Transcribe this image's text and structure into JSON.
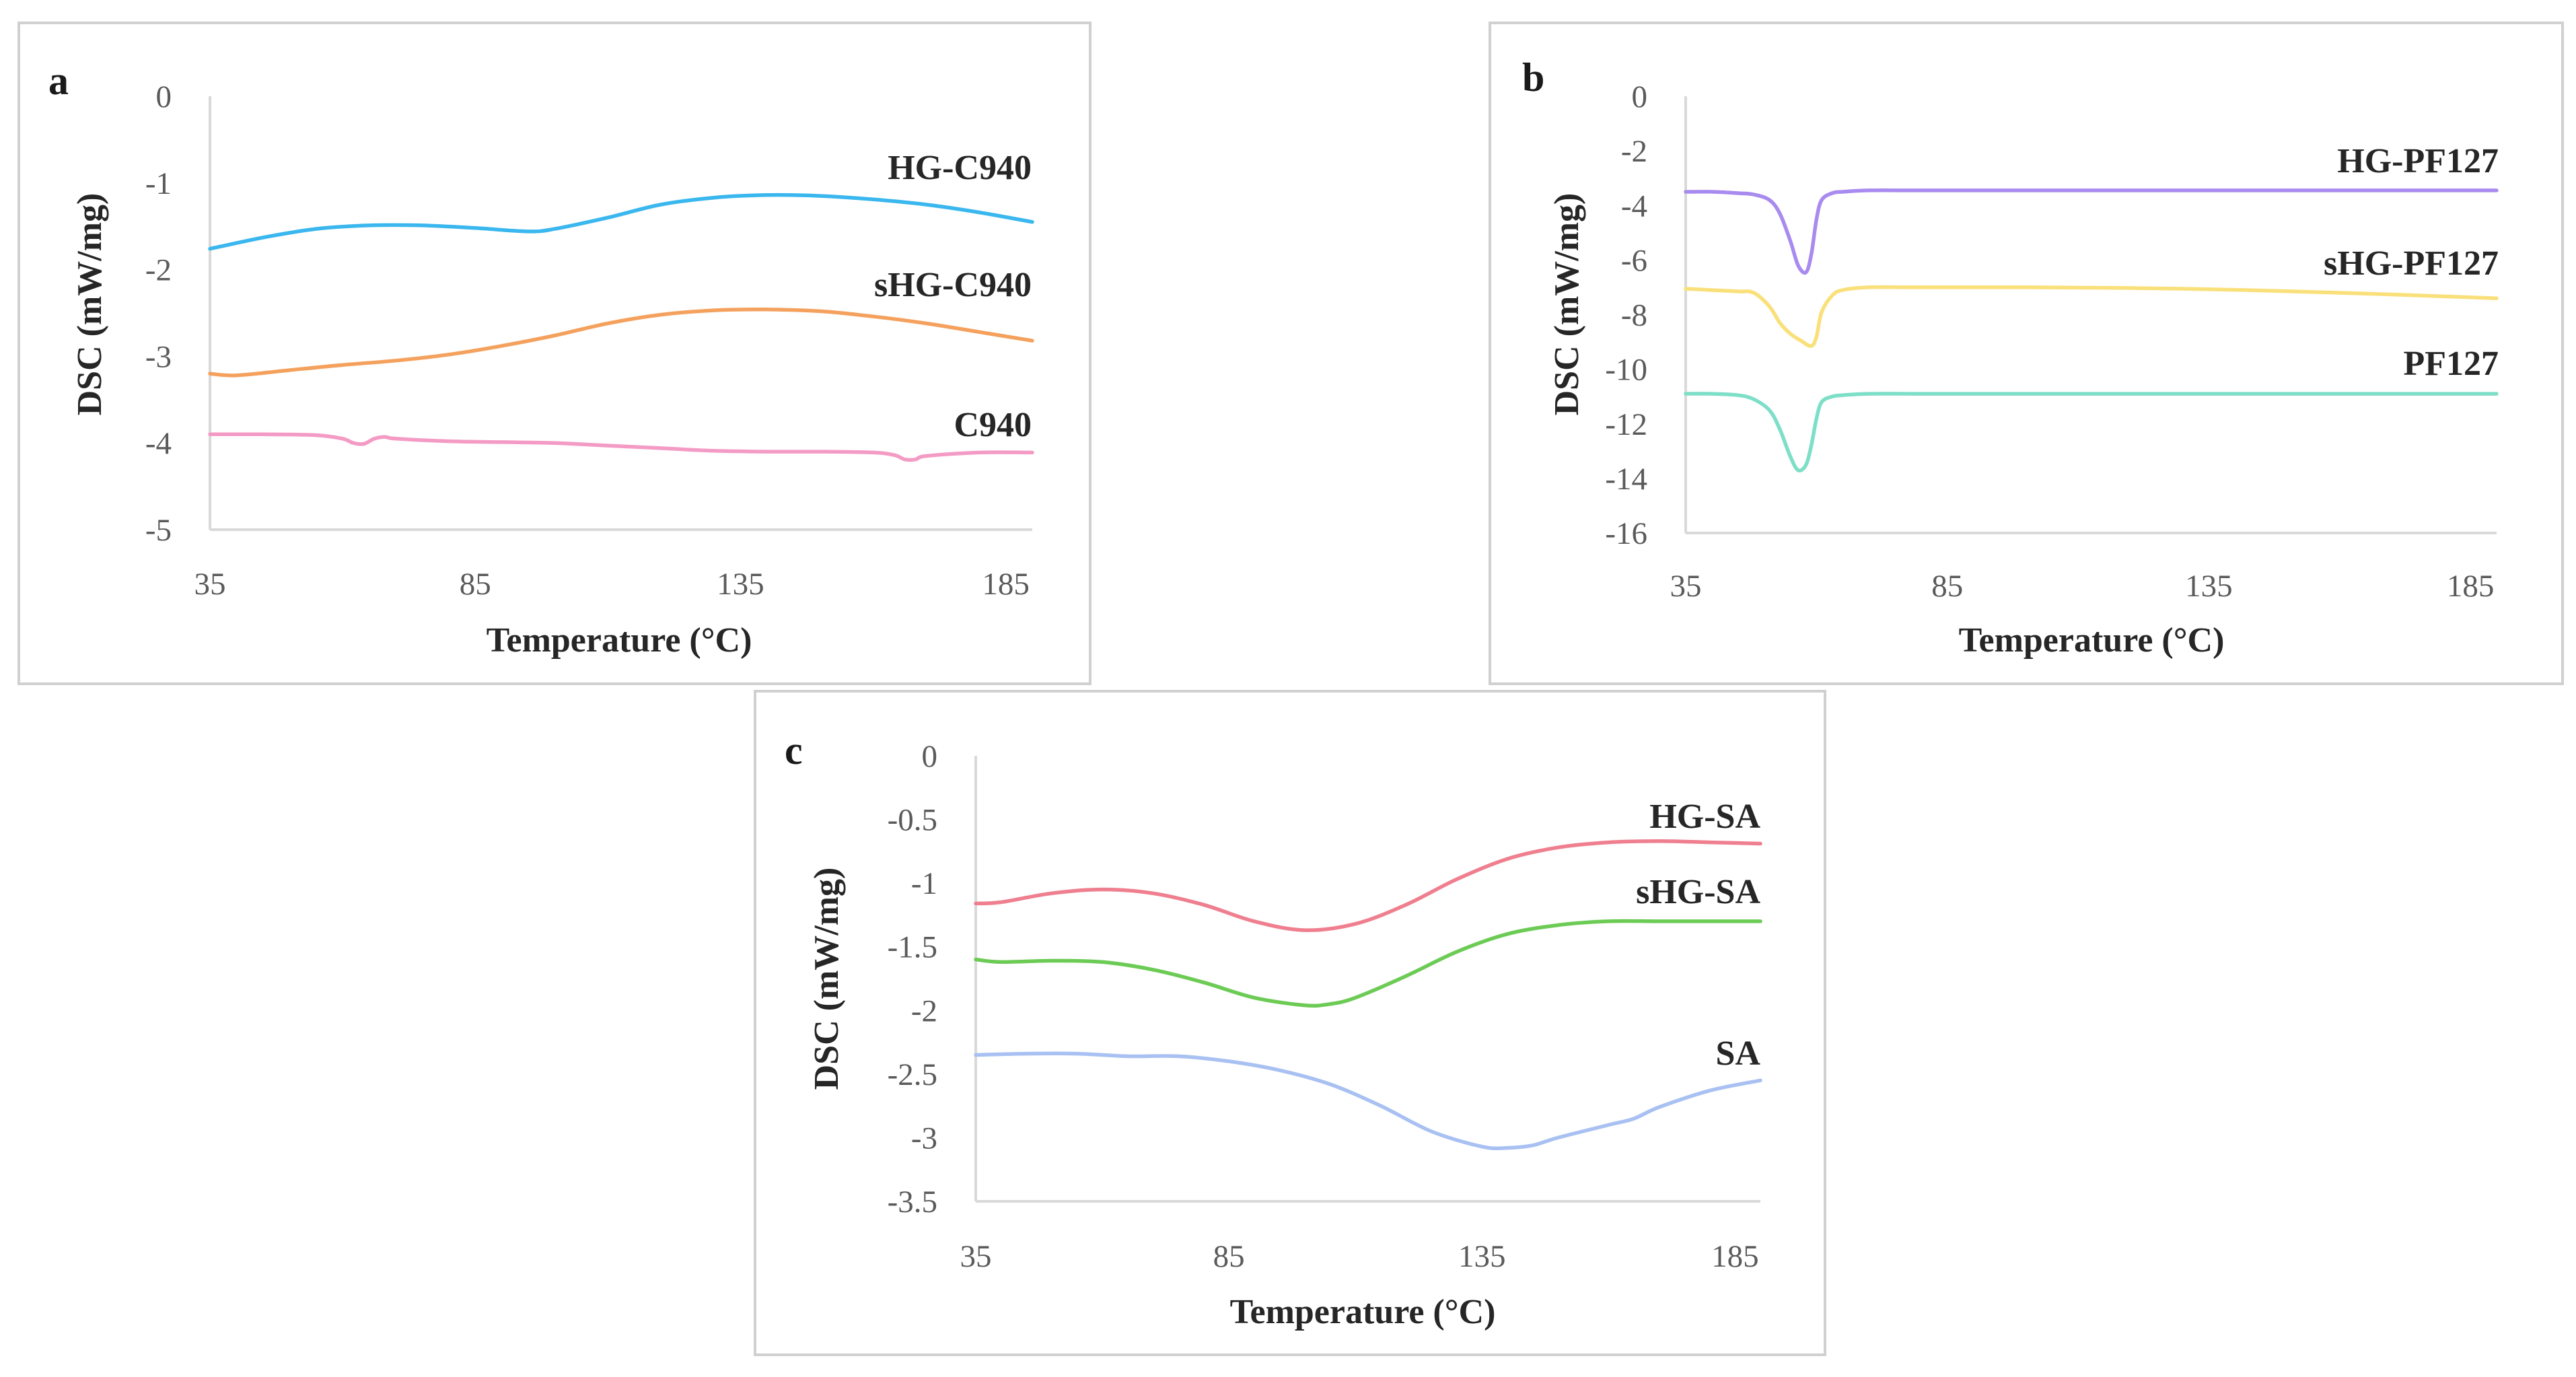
{
  "chart_data": [
    {
      "panel": "a",
      "type": "line",
      "xlabel": "Temperature (°C)",
      "ylabel": "DSC (mW/mg)",
      "xlim": [
        35,
        190
      ],
      "ylim": [
        -5,
        0
      ],
      "xticks": [
        "35",
        "85",
        "135",
        "185"
      ],
      "yticks": [
        "0",
        "-1",
        "-2",
        "-3",
        "-4",
        "-5"
      ],
      "series": [
        {
          "name": "HG-C940",
          "color": "#3ab7ee",
          "x": [
            35,
            45,
            55,
            65,
            75,
            85,
            95,
            100,
            110,
            120,
            130,
            140,
            150,
            160,
            170,
            180,
            190
          ],
          "y": [
            -1.76,
            -1.63,
            -1.53,
            -1.49,
            -1.49,
            -1.52,
            -1.56,
            -1.53,
            -1.4,
            -1.25,
            -1.17,
            -1.14,
            -1.15,
            -1.19,
            -1.25,
            -1.34,
            -1.45
          ]
        },
        {
          "name": "sHG-C940",
          "color": "#f5a15e",
          "x": [
            35,
            40,
            50,
            60,
            70,
            80,
            90,
            100,
            110,
            120,
            130,
            140,
            150,
            160,
            170,
            180,
            190
          ],
          "y": [
            -3.2,
            -3.22,
            -3.16,
            -3.1,
            -3.05,
            -2.98,
            -2.88,
            -2.76,
            -2.62,
            -2.52,
            -2.47,
            -2.46,
            -2.48,
            -2.54,
            -2.62,
            -2.72,
            -2.82
          ]
        },
        {
          "name": "C940",
          "color": "#f49bc5",
          "x": [
            35,
            45,
            55,
            60,
            62,
            64,
            66,
            68,
            70,
            80,
            90,
            100,
            110,
            120,
            130,
            140,
            150,
            160,
            164,
            166,
            168,
            170,
            180,
            190
          ],
          "y": [
            -3.9,
            -3.9,
            -3.91,
            -3.95,
            -4.0,
            -4.01,
            -3.95,
            -3.93,
            -3.95,
            -3.98,
            -3.99,
            -4.0,
            -4.03,
            -4.06,
            -4.09,
            -4.1,
            -4.1,
            -4.11,
            -4.14,
            -4.19,
            -4.19,
            -4.15,
            -4.11,
            -4.11
          ]
        }
      ]
    },
    {
      "panel": "b",
      "type": "line",
      "xlabel": "Temperature (°C)",
      "ylabel": "DSC (mW/mg)",
      "xlim": [
        35,
        190
      ],
      "ylim": [
        -16,
        0
      ],
      "xticks": [
        "35",
        "85",
        "135",
        "185"
      ],
      "yticks": [
        "0",
        "-2",
        "-4",
        "-6",
        "-8",
        "-10",
        "-12",
        "-14",
        "-16"
      ],
      "series": [
        {
          "name": "HG-PF127",
          "color": "#a98bf0",
          "x": [
            35,
            40,
            45,
            48,
            51,
            53,
            55,
            56.5,
            58,
            59,
            60,
            61,
            63,
            65,
            70,
            80,
            100,
            130,
            160,
            190
          ],
          "y": [
            -3.5,
            -3.5,
            -3.55,
            -3.6,
            -3.8,
            -4.3,
            -5.3,
            -6.2,
            -6.45,
            -5.8,
            -4.5,
            -3.8,
            -3.55,
            -3.5,
            -3.45,
            -3.45,
            -3.45,
            -3.45,
            -3.45,
            -3.45
          ]
        },
        {
          "name": "sHG-PF127",
          "color": "#fae07a",
          "x": [
            35,
            40,
            45,
            48,
            51,
            53,
            55,
            57,
            59,
            60,
            61,
            63,
            65,
            70,
            80,
            100,
            130,
            160,
            190
          ],
          "y": [
            -7.05,
            -7.1,
            -7.15,
            -7.2,
            -7.7,
            -8.3,
            -8.7,
            -8.95,
            -9.15,
            -8.8,
            -7.9,
            -7.3,
            -7.1,
            -7.0,
            -7.0,
            -7.0,
            -7.05,
            -7.2,
            -7.4
          ]
        },
        {
          "name": "PF127",
          "color": "#7edfc8",
          "x": [
            35,
            40,
            45,
            48,
            51,
            53,
            55,
            56.5,
            58,
            59,
            60,
            61,
            63,
            65,
            70,
            80,
            100,
            130,
            160,
            190
          ],
          "y": [
            -10.9,
            -10.9,
            -10.95,
            -11.1,
            -11.5,
            -12.2,
            -13.2,
            -13.7,
            -13.5,
            -12.8,
            -11.8,
            -11.2,
            -11.0,
            -10.95,
            -10.9,
            -10.9,
            -10.9,
            -10.9,
            -10.9,
            -10.9
          ]
        }
      ]
    },
    {
      "panel": "c",
      "type": "line",
      "xlabel": "Temperature (°C)",
      "ylabel": "DSC (mW/mg)",
      "xlim": [
        35,
        190
      ],
      "ylim": [
        -3.5,
        0
      ],
      "xticks": [
        "35",
        "85",
        "135",
        "185"
      ],
      "yticks": [
        "0",
        "-0.5",
        "-1",
        "-1.5",
        "-2",
        "-2.5",
        "-3",
        "-3.5"
      ],
      "series": [
        {
          "name": "HG-SA",
          "color": "#ef7f8f",
          "x": [
            35,
            40,
            50,
            60,
            70,
            80,
            90,
            100,
            110,
            120,
            130,
            140,
            150,
            160,
            170,
            180,
            190
          ],
          "y": [
            -1.16,
            -1.15,
            -1.08,
            -1.05,
            -1.08,
            -1.17,
            -1.3,
            -1.37,
            -1.32,
            -1.17,
            -0.97,
            -0.81,
            -0.72,
            -0.68,
            -0.67,
            -0.68,
            -0.69
          ]
        },
        {
          "name": "sHG-SA",
          "color": "#6ccb55",
          "x": [
            35,
            40,
            50,
            60,
            70,
            80,
            90,
            100,
            105,
            110,
            120,
            130,
            140,
            150,
            160,
            170,
            180,
            190
          ],
          "y": [
            -1.6,
            -1.62,
            -1.61,
            -1.62,
            -1.68,
            -1.78,
            -1.9,
            -1.96,
            -1.95,
            -1.9,
            -1.73,
            -1.54,
            -1.4,
            -1.33,
            -1.3,
            -1.3,
            -1.3,
            -1.3
          ]
        },
        {
          "name": "SA",
          "color": "#a9c1f2",
          "x": [
            35,
            45,
            55,
            65,
            75,
            85,
            95,
            105,
            115,
            125,
            135,
            140,
            145,
            150,
            160,
            165,
            170,
            180,
            190
          ],
          "y": [
            -2.35,
            -2.34,
            -2.34,
            -2.36,
            -2.36,
            -2.4,
            -2.47,
            -2.58,
            -2.75,
            -2.95,
            -3.07,
            -3.08,
            -3.06,
            -3.0,
            -2.9,
            -2.85,
            -2.76,
            -2.63,
            -2.55
          ]
        }
      ]
    }
  ]
}
